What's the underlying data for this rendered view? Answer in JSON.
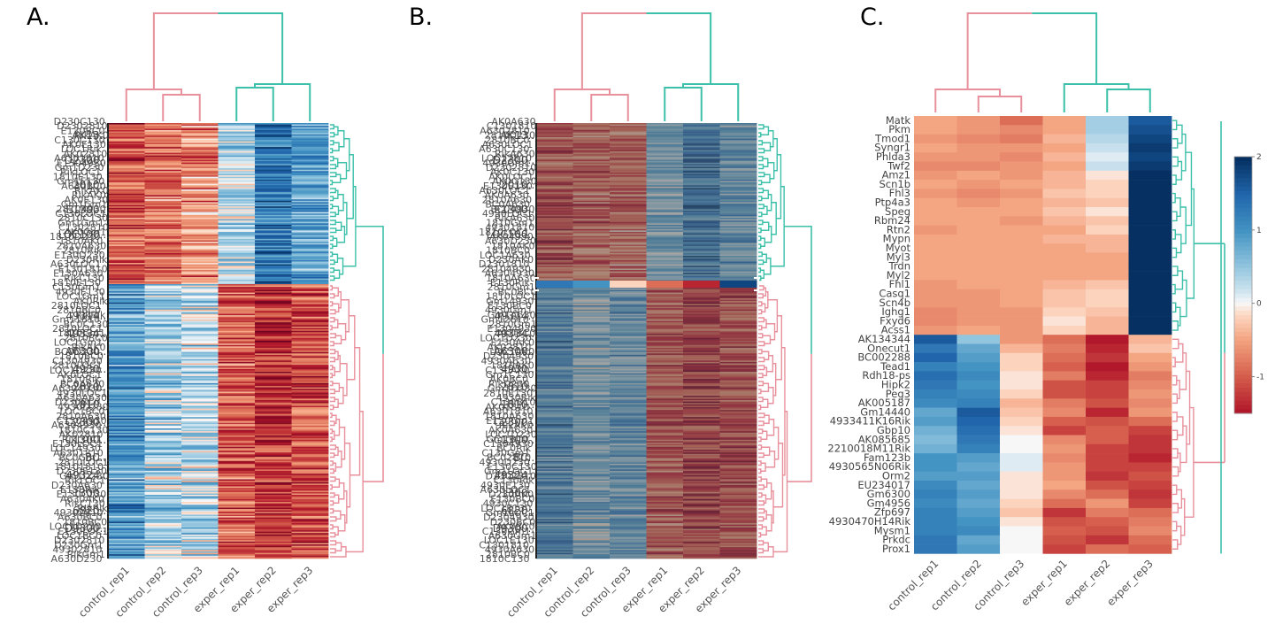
{
  "figure": {
    "panels": [
      {
        "id": "A",
        "letter": "A."
      },
      {
        "id": "B",
        "letter": "B."
      },
      {
        "id": "C",
        "letter": "C."
      }
    ]
  },
  "colors": {
    "dendro_control": "#e8909c",
    "dendro_exper": "#3cc0aa",
    "scale_low": "#67001f",
    "scale_mid": "#f7f7f7",
    "scale_high": "#053061",
    "label_text": "#444444",
    "highlight_box": "#ffffff"
  },
  "chart_data": [
    {
      "panel": "A",
      "type": "heatmap",
      "title": "",
      "columns": [
        "control_rep1",
        "control_rep2",
        "control_rep3",
        "exper_rep1",
        "exper_rep2",
        "exper_rep3"
      ],
      "visible_row_labels": [
        "AK13...",
        "D2300...",
        "2010...",
        "E1300...",
        "LOC100...",
        "49314...",
        "49334...",
        "A6300...",
        "4930...",
        "2810...",
        "1810...",
        "C2300...",
        "C1300...",
        "BC...",
        "49324...",
        "1300...",
        "6820...",
        "D9300..."
      ],
      "clusters": [
        {
          "name": "",
          "rows": 200,
          "group_values": [
            -1.1,
            -0.9,
            -0.7,
            0.3,
            1.3,
            0.9
          ]
        },
        {
          "name": "",
          "rows": 360,
          "group_values": [
            1.0,
            0.4,
            0.3,
            -1.0,
            -1.3,
            -1.1
          ]
        }
      ],
      "value_range": [
        -1.5,
        2
      ],
      "grid": false,
      "row_dendrogram": true,
      "column_dendrogram": true
    },
    {
      "panel": "B",
      "type": "heatmap",
      "title": "",
      "columns": [
        "control_rep1",
        "control_rep2",
        "control_rep3",
        "exper_rep1",
        "exper_rep2",
        "exper_rep3"
      ],
      "visible_row_labels": [
        "AK13...",
        "D2300...",
        "2010...",
        "E1300...",
        "LOC100...",
        "49314...",
        "49334...",
        "A6300...",
        "4930...",
        "2810...",
        "1810...",
        "C2300...",
        "C1300...",
        "BC...",
        "49324...",
        "1300...",
        "6820...",
        "D9300..."
      ],
      "clusters": [
        {
          "name": "",
          "rows": 200,
          "group_values": [
            -1.2,
            -1.0,
            -0.9,
            0.6,
            1.4,
            0.8
          ]
        },
        {
          "name": "",
          "rows": 360,
          "group_values": [
            1.1,
            0.6,
            0.8,
            -1.1,
            -1.4,
            -1.2
          ]
        }
      ],
      "value_range": [
        -1.5,
        2
      ],
      "highlighted_rows": "cluster boundary (rows shown in C)",
      "grid": false,
      "row_dendrogram": true,
      "column_dendrogram": true
    },
    {
      "panel": "C",
      "type": "heatmap",
      "title": "",
      "columns": [
        "control_rep1",
        "control_rep2",
        "control_rep3",
        "exper_rep1",
        "exper_rep2",
        "exper_rep3"
      ],
      "rows": [
        "Matk",
        "Pkm",
        "Tmod1",
        "Syngr1",
        "Phlda3",
        "Twf2",
        "Amz1",
        "Scn1b",
        "Fhl3",
        "Ptp4a3",
        "Speg",
        "Rbm24",
        "Rtn2",
        "Mypn",
        "Myot",
        "Myl3",
        "Trdn",
        "Myl2",
        "Fhl1",
        "Casq1",
        "Scn4b",
        "Ighg1",
        "Fxyd6",
        "Acss1",
        "AK134344",
        "Onecut1",
        "BC002288",
        "Tead1",
        "Rdh18-ps",
        "Hipk2",
        "Peg3",
        "AK005187",
        "Gm14440",
        "4933411K16Rik",
        "Gbp10",
        "AK085685",
        "2210018M11Rik",
        "Fam123b",
        "4930565N06Rik",
        "Orm2",
        "EU234017",
        "Gm6300",
        "Gm4956",
        "Zfp697",
        "4930470H14Rik",
        "Mysm1",
        "Prkdc",
        "Prox1"
      ],
      "values": [
        [
          -0.5,
          -0.6,
          -0.9,
          -0.5,
          0.4,
          1.6
        ],
        [
          -0.5,
          -0.6,
          -0.7,
          -0.5,
          0.4,
          1.7
        ],
        [
          -0.6,
          -0.7,
          -0.8,
          -0.4,
          0.3,
          1.8
        ],
        [
          -0.5,
          -0.6,
          -0.6,
          -0.5,
          0.2,
          1.9
        ],
        [
          -0.6,
          -0.6,
          -0.7,
          -0.4,
          0.1,
          1.8
        ],
        [
          -0.7,
          -0.7,
          -0.6,
          -0.5,
          0.2,
          1.9
        ],
        [
          -0.6,
          -0.5,
          -0.6,
          -0.4,
          -0.1,
          2.0
        ],
        [
          -0.5,
          -0.6,
          -0.5,
          -0.4,
          -0.2,
          2.0
        ],
        [
          -0.6,
          -0.7,
          -0.6,
          -0.3,
          -0.2,
          2.0
        ],
        [
          -0.5,
          -0.6,
          -0.5,
          -0.4,
          -0.3,
          2.0
        ],
        [
          -0.5,
          -0.5,
          -0.5,
          -0.3,
          -0.1,
          2.0
        ],
        [
          -0.5,
          -0.5,
          -0.6,
          -0.4,
          -0.3,
          2.0
        ],
        [
          -0.6,
          -0.5,
          -0.5,
          -0.5,
          -0.2,
          2.0
        ],
        [
          -0.5,
          -0.5,
          -0.5,
          -0.4,
          -0.4,
          2.0
        ],
        [
          -0.5,
          -0.5,
          -0.5,
          -0.5,
          -0.4,
          2.0
        ],
        [
          -0.5,
          -0.5,
          -0.5,
          -0.5,
          -0.5,
          2.0
        ],
        [
          -0.5,
          -0.5,
          -0.5,
          -0.5,
          -0.5,
          2.0
        ],
        [
          -0.5,
          -0.5,
          -0.5,
          -0.5,
          -0.5,
          2.0
        ],
        [
          -0.6,
          -0.5,
          -0.5,
          -0.4,
          -0.3,
          2.0
        ],
        [
          -0.6,
          -0.6,
          -0.5,
          -0.3,
          -0.2,
          2.0
        ],
        [
          -0.6,
          -0.6,
          -0.5,
          -0.3,
          -0.2,
          2.0
        ],
        [
          -0.7,
          -0.6,
          -0.6,
          -0.2,
          -0.3,
          2.0
        ],
        [
          -0.7,
          -0.6,
          -0.6,
          -0.1,
          -0.4,
          2.0
        ],
        [
          -0.6,
          -0.5,
          -0.6,
          -0.2,
          -0.4,
          2.0
        ],
        [
          1.6,
          0.5,
          -0.6,
          -0.9,
          -1.5,
          -0.4
        ],
        [
          1.3,
          0.8,
          -0.4,
          -0.8,
          -1.4,
          -0.3
        ],
        [
          1.5,
          0.9,
          -0.2,
          -0.9,
          -1.3,
          -0.5
        ],
        [
          1.2,
          1.0,
          -0.2,
          -1.0,
          -1.5,
          -0.6
        ],
        [
          1.4,
          1.1,
          -0.1,
          -0.8,
          -1.4,
          -0.8
        ],
        [
          1.3,
          1.0,
          -0.1,
          -1.1,
          -1.2,
          -0.7
        ],
        [
          1.2,
          1.1,
          -0.2,
          -1.1,
          -1.2,
          -0.6
        ],
        [
          1.1,
          1.2,
          -0.4,
          -0.8,
          -1.1,
          -0.7
        ],
        [
          0.8,
          1.6,
          -0.3,
          -0.7,
          -1.4,
          -0.6
        ],
        [
          0.9,
          1.5,
          -0.2,
          -1.0,
          -1.1,
          -0.9
        ],
        [
          0.7,
          1.4,
          -0.1,
          -1.2,
          -1.0,
          -1.2
        ],
        [
          0.6,
          1.3,
          0.0,
          -0.7,
          -1.0,
          -1.3
        ],
        [
          0.7,
          1.2,
          0.0,
          -0.6,
          -1.2,
          -1.3
        ],
        [
          1.0,
          0.9,
          0.1,
          -0.7,
          -1.2,
          -1.4
        ],
        [
          1.0,
          0.8,
          0.1,
          -0.6,
          -1.2,
          -1.2
        ],
        [
          0.9,
          0.9,
          -0.1,
          -0.6,
          -1.3,
          -1.1
        ],
        [
          1.1,
          0.8,
          -0.1,
          -0.5,
          -1.1,
          -1.2
        ],
        [
          1.2,
          0.9,
          -0.1,
          -0.7,
          -0.9,
          -1.3
        ],
        [
          1.1,
          0.8,
          -0.2,
          -0.9,
          -0.6,
          -1.2
        ],
        [
          1.2,
          0.9,
          -0.3,
          -1.3,
          -0.8,
          -0.9
        ],
        [
          1.2,
          1.0,
          -0.1,
          -1.1,
          -1.0,
          -0.8
        ],
        [
          1.2,
          1.1,
          0.0,
          -1.0,
          -1.1,
          -0.7
        ],
        [
          1.3,
          0.8,
          0.0,
          -1.1,
          -1.3,
          -0.9
        ],
        [
          1.3,
          0.9,
          0.0,
          -1.2,
          -0.9,
          -1.0
        ]
      ],
      "value_range": [
        -1.5,
        2
      ],
      "colorbar": {
        "ticks": [
          "2",
          "1",
          "0",
          "-1"
        ],
        "tick_values": [
          2,
          1,
          0,
          -1
        ],
        "placement": "right"
      },
      "grid": false,
      "row_dendrogram": true,
      "column_dendrogram": true
    }
  ]
}
